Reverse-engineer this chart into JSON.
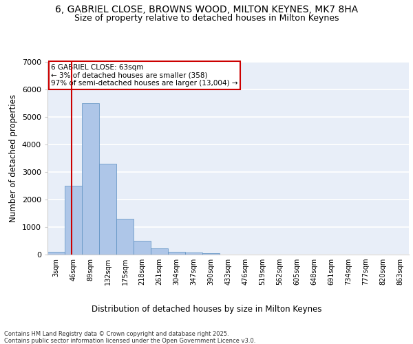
{
  "title_line1": "6, GABRIEL CLOSE, BROWNS WOOD, MILTON KEYNES, MK7 8HA",
  "title_line2": "Size of property relative to detached houses in Milton Keynes",
  "xlabel": "Distribution of detached houses by size in Milton Keynes",
  "ylabel": "Number of detached properties",
  "footer": "Contains HM Land Registry data © Crown copyright and database right 2025.\nContains public sector information licensed under the Open Government Licence v3.0.",
  "bin_labels": [
    "3sqm",
    "46sqm",
    "89sqm",
    "132sqm",
    "175sqm",
    "218sqm",
    "261sqm",
    "304sqm",
    "347sqm",
    "390sqm",
    "433sqm",
    "476sqm",
    "519sqm",
    "562sqm",
    "605sqm",
    "648sqm",
    "691sqm",
    "734sqm",
    "777sqm",
    "820sqm",
    "863sqm"
  ],
  "bar_values": [
    100,
    2500,
    5500,
    3300,
    1300,
    500,
    220,
    100,
    70,
    40,
    5,
    5,
    0,
    0,
    0,
    0,
    0,
    0,
    0,
    0,
    0
  ],
  "bar_color": "#aec6e8",
  "bar_edge_color": "#5a8fc0",
  "annotation_line1": "6 GABRIEL CLOSE: 63sqm",
  "annotation_line2": "← 3% of detached houses are smaller (358)",
  "annotation_line3": "97% of semi-detached houses are larger (13,004) →",
  "vline_color": "#cc0000",
  "ylim": [
    0,
    7000
  ],
  "background_color": "#e8eef8",
  "grid_color": "#ffffff",
  "title_fontsize": 10,
  "subtitle_fontsize": 9,
  "axis_label_fontsize": 8.5,
  "tick_fontsize": 7,
  "footer_fontsize": 6
}
